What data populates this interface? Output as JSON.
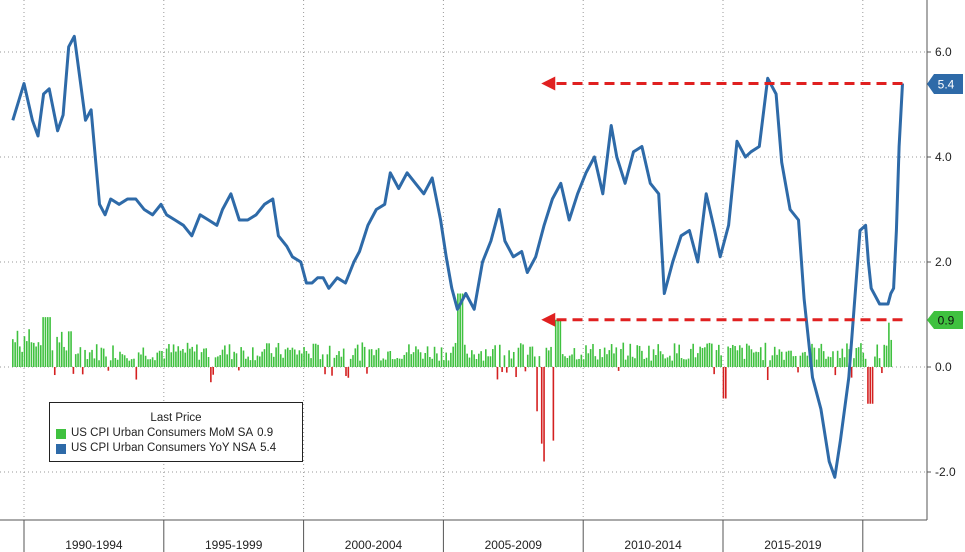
{
  "colors": {
    "mom_bar_positive": "#3fc13f",
    "mom_bar_negative": "#d42020",
    "yoy_line": "#2e6aa8",
    "arrow": "#e02020",
    "yoy_badge": "#2e6aa8",
    "mom_badge": "#3fc13f",
    "grid": "#9a9a9a"
  },
  "legend": {
    "title": "Last Price",
    "items": [
      {
        "label": "US CPI Urban Consumers MoM SA",
        "value": "0.9",
        "color": "#3fc13f"
      },
      {
        "label": "US CPI Urban Consumers YoY NSA",
        "value": "5.4",
        "color": "#2e6aa8"
      }
    ]
  },
  "badges": {
    "yoy": "5.4",
    "mom": "0.9"
  },
  "chart_data": {
    "type": "line",
    "x_period_labels": [
      "1990-1994",
      "1995-1999",
      "2000-2004",
      "2005-2009",
      "2010-2014",
      "2015-2019"
    ],
    "y_ticks": [
      "6.0",
      "4.0",
      "2.0",
      "0.0",
      "-2.0"
    ],
    "ylim": [
      -2.9,
      7.2
    ],
    "xlim": [
      1989.6,
      2022.9
    ],
    "grid": true,
    "legend_position": "bottom-left",
    "annotations": [
      {
        "type": "arrow",
        "series": "yoy",
        "from_x": 2021.42,
        "to_x": 2008.5,
        "y": 5.4
      },
      {
        "type": "arrow",
        "series": "mom",
        "from_x": 2021.42,
        "to_x": 2008.5,
        "y": 0.9
      }
    ],
    "yoy_points": [
      [
        1989.6,
        4.7
      ],
      [
        1990.0,
        5.4
      ],
      [
        1990.3,
        4.7
      ],
      [
        1990.5,
        4.4
      ],
      [
        1990.7,
        5.2
      ],
      [
        1990.9,
        5.3
      ],
      [
        1991.2,
        4.5
      ],
      [
        1991.4,
        4.8
      ],
      [
        1991.6,
        6.1
      ],
      [
        1991.8,
        6.3
      ],
      [
        1992.0,
        5.5
      ],
      [
        1992.2,
        4.7
      ],
      [
        1992.4,
        4.9
      ],
      [
        1992.7,
        3.1
      ],
      [
        1992.9,
        2.9
      ],
      [
        1993.1,
        3.2
      ],
      [
        1993.4,
        3.1
      ],
      [
        1993.7,
        3.2
      ],
      [
        1994.0,
        3.2
      ],
      [
        1994.3,
        3.0
      ],
      [
        1994.6,
        2.9
      ],
      [
        1994.9,
        3.1
      ],
      [
        1995.1,
        2.9
      ],
      [
        1995.4,
        2.8
      ],
      [
        1995.7,
        2.7
      ],
      [
        1996.0,
        2.5
      ],
      [
        1996.3,
        2.9
      ],
      [
        1996.6,
        2.8
      ],
      [
        1996.9,
        2.7
      ],
      [
        1997.1,
        3.0
      ],
      [
        1997.4,
        3.3
      ],
      [
        1997.7,
        2.8
      ],
      [
        1998.0,
        2.8
      ],
      [
        1998.3,
        2.9
      ],
      [
        1998.6,
        3.1
      ],
      [
        1998.9,
        3.2
      ],
      [
        1999.1,
        2.5
      ],
      [
        1999.4,
        2.3
      ],
      [
        1999.6,
        2.1
      ],
      [
        1999.9,
        2.0
      ],
      [
        2000.1,
        1.6
      ],
      [
        2000.3,
        1.6
      ],
      [
        2000.5,
        1.7
      ],
      [
        2000.7,
        1.7
      ],
      [
        2000.9,
        1.5
      ],
      [
        2001.2,
        1.7
      ],
      [
        2001.5,
        1.6
      ],
      [
        2001.8,
        2.0
      ],
      [
        2002.0,
        2.2
      ],
      [
        2002.3,
        2.7
      ],
      [
        2002.6,
        3.0
      ],
      [
        2002.9,
        3.1
      ],
      [
        2003.1,
        3.7
      ],
      [
        2003.4,
        3.4
      ],
      [
        2003.7,
        3.7
      ],
      [
        2004.0,
        3.5
      ],
      [
        2004.3,
        3.3
      ],
      [
        2004.6,
        3.6
      ],
      [
        2004.9,
        2.8
      ],
      [
        2005.1,
        2.1
      ],
      [
        2005.3,
        1.5
      ],
      [
        2005.5,
        1.1
      ],
      [
        2005.8,
        1.4
      ],
      [
        2006.1,
        1.1
      ],
      [
        2006.4,
        2.0
      ],
      [
        2006.7,
        2.4
      ],
      [
        2007.0,
        3.0
      ],
      [
        2007.2,
        2.4
      ],
      [
        2007.5,
        2.1
      ],
      [
        2007.8,
        2.2
      ],
      [
        2008.0,
        1.8
      ],
      [
        2008.3,
        2.1
      ],
      [
        2008.6,
        2.7
      ],
      [
        2008.9,
        3.2
      ],
      [
        2009.2,
        3.5
      ],
      [
        2009.5,
        2.8
      ],
      [
        2009.8,
        3.3
      ],
      [
        2010.1,
        3.7
      ],
      [
        2010.4,
        4.0
      ],
      [
        2010.7,
        3.3
      ],
      [
        2011.0,
        4.6
      ],
      [
        2011.2,
        4.0
      ],
      [
        2011.5,
        3.5
      ],
      [
        2011.8,
        4.1
      ],
      [
        2012.1,
        4.2
      ],
      [
        2012.4,
        3.5
      ],
      [
        2012.7,
        3.3
      ],
      [
        2012.9,
        1.4
      ],
      [
        2013.2,
        2.0
      ],
      [
        2013.5,
        2.5
      ],
      [
        2013.8,
        2.6
      ],
      [
        2014.1,
        2.0
      ],
      [
        2014.4,
        3.3
      ],
      [
        2014.7,
        2.6
      ],
      [
        2014.9,
        2.1
      ],
      [
        2015.2,
        2.7
      ],
      [
        2015.5,
        4.3
      ],
      [
        2015.8,
        4.0
      ],
      [
        2016.0,
        4.1
      ],
      [
        2016.3,
        4.2
      ],
      [
        2016.6,
        5.5
      ],
      [
        2016.9,
        5.2
      ],
      [
        2017.1,
        3.9
      ],
      [
        2017.4,
        3.0
      ],
      [
        2017.7,
        2.8
      ],
      [
        2017.9,
        1.3
      ],
      [
        2018.2,
        -0.2
      ],
      [
        2018.5,
        -0.8
      ],
      [
        2018.8,
        -1.8
      ],
      [
        2019.0,
        -2.1
      ],
      [
        2019.2,
        -1.4
      ],
      [
        2019.5,
        -0.2
      ],
      [
        2019.7,
        1.2
      ],
      [
        2019.9,
        2.6
      ],
      [
        2020.1,
        2.7
      ],
      [
        2020.2,
        2.0
      ],
      [
        2020.3,
        1.5
      ],
      [
        2020.6,
        1.2
      ],
      [
        2020.9,
        1.2
      ],
      [
        2021.0,
        1.4
      ],
      [
        2021.1,
        1.5
      ],
      [
        2021.2,
        2.6
      ],
      [
        2021.3,
        4.2
      ],
      [
        2021.42,
        5.4
      ]
    ],
    "yoy_line_overlay_note": "",
    "mom_bars": []
  }
}
